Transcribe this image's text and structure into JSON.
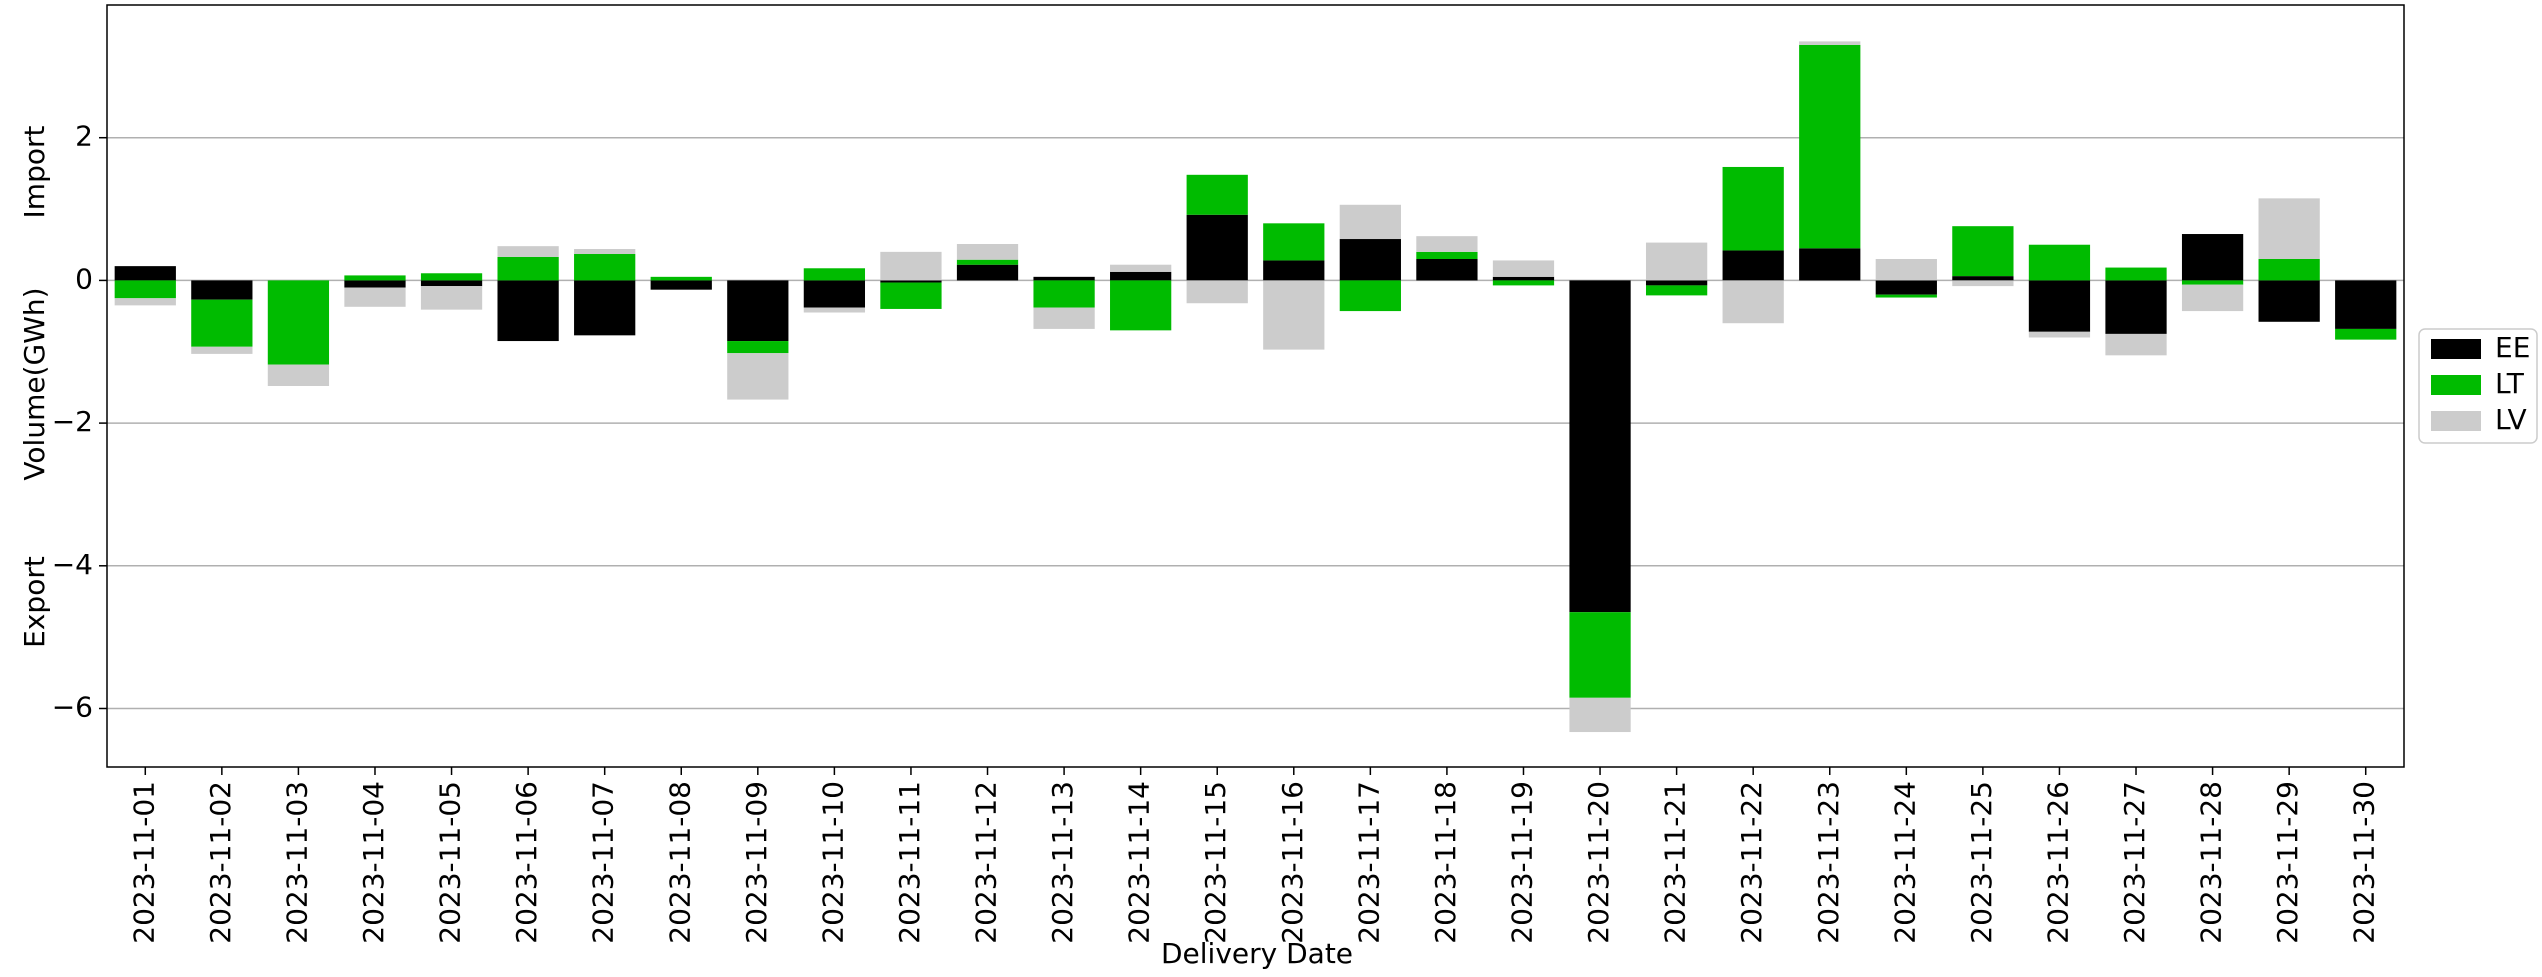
{
  "chart_data": {
    "type": "bar",
    "stacked": true,
    "xlabel": "Delivery Date",
    "ylabel": "Volume(GWh)",
    "ylabel_top": "Import",
    "ylabel_bottom": "Export",
    "categories": [
      "2023-11-01",
      "2023-11-02",
      "2023-11-03",
      "2023-11-04",
      "2023-11-05",
      "2023-11-06",
      "2023-11-07",
      "2023-11-08",
      "2023-11-09",
      "2023-11-10",
      "2023-11-11",
      "2023-11-12",
      "2023-11-13",
      "2023-11-14",
      "2023-11-15",
      "2023-11-16",
      "2023-11-17",
      "2023-11-18",
      "2023-11-19",
      "2023-11-20",
      "2023-11-21",
      "2023-11-22",
      "2023-11-23",
      "2023-11-24",
      "2023-11-25",
      "2023-11-26",
      "2023-11-27",
      "2023-11-28",
      "2023-11-29",
      "2023-11-30"
    ],
    "series": [
      {
        "name": "EE",
        "color": "#000000",
        "values": [
          0.2,
          -0.27,
          0,
          -0.1,
          -0.08,
          -0.85,
          -0.77,
          -0.13,
          -0.85,
          -0.38,
          -0.03,
          0.22,
          0.05,
          0.12,
          0.92,
          0.28,
          0.58,
          0.3,
          0.05,
          -4.65,
          -0.07,
          0.42,
          0.45,
          -0.2,
          0.06,
          -0.72,
          -0.75,
          0.65,
          -0.58,
          -0.68
        ]
      },
      {
        "name": "LT",
        "color": "#00bb00",
        "values": [
          -0.25,
          -0.66,
          -1.18,
          0.07,
          0.1,
          0.33,
          0.37,
          0.05,
          -0.17,
          0.17,
          -0.37,
          0.07,
          -0.38,
          -0.7,
          0.56,
          0.52,
          -0.43,
          0.1,
          -0.07,
          -1.2,
          -0.14,
          1.17,
          2.85,
          -0.04,
          0.7,
          0.5,
          0.18,
          -0.06,
          0.3,
          -0.15
        ]
      },
      {
        "name": "LV",
        "color": "#cccccc",
        "values": [
          -0.1,
          -0.1,
          -0.3,
          -0.27,
          -0.33,
          0.15,
          0.07,
          0,
          -0.65,
          -0.07,
          0.4,
          0.22,
          -0.3,
          0.1,
          -0.32,
          -0.97,
          0.48,
          0.22,
          0.23,
          -0.48,
          0.53,
          -0.6,
          0.05,
          0.3,
          -0.08,
          -0.08,
          -0.3,
          -0.37,
          0.85,
          0
        ]
      }
    ],
    "ylim": [
      -6.82,
      3.86
    ],
    "yticks": [
      {
        "value": -6,
        "label": "−6"
      },
      {
        "value": -4,
        "label": "−4"
      },
      {
        "value": -2,
        "label": "−2"
      },
      0,
      2
    ],
    "grid": true,
    "legend": "right"
  }
}
